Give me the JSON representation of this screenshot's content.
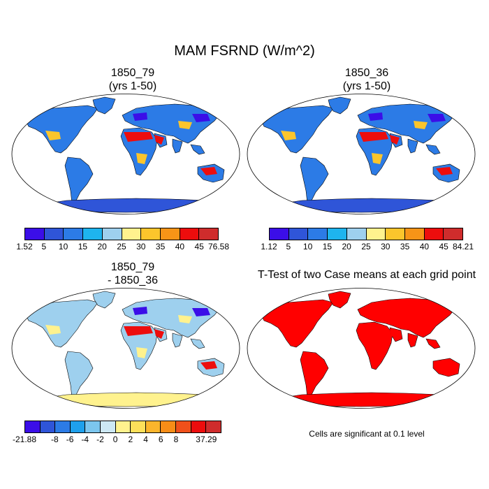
{
  "title": "MAM FSRND (W/m^2)",
  "panels": [
    {
      "line1": "1850_79",
      "line2": "(yrs 1-50)"
    },
    {
      "line1": "1850_36",
      "line2": "(yrs 1-50)"
    },
    {
      "line1": "1850_79",
      "line2": "- 1850_36"
    },
    {
      "line1": "T-Test of two Case means at each grid point",
      "line2": ""
    }
  ],
  "colorbars": [
    {
      "colors": [
        "#3b0ee8",
        "#2f55d8",
        "#2c7be6",
        "#1eb4ee",
        "#9ed0ee",
        "#fff28e",
        "#fbc52c",
        "#f79417",
        "#ed0d0d",
        "#cf2c2c"
      ],
      "labels": [
        "1.52",
        "5",
        "10",
        "15",
        "20",
        "25",
        "30",
        "35",
        "40",
        "45",
        "76.58"
      ]
    },
    {
      "colors": [
        "#3b0ee8",
        "#2f55d8",
        "#2c7be6",
        "#1eb4ee",
        "#9ed0ee",
        "#fff28e",
        "#fbc52c",
        "#f79417",
        "#ed0d0d",
        "#cf2c2c"
      ],
      "labels": [
        "1.12",
        "5",
        "10",
        "15",
        "20",
        "25",
        "30",
        "35",
        "40",
        "45",
        "84.21"
      ]
    },
    {
      "colors": [
        "#3b0ee8",
        "#2f55d8",
        "#2c7be6",
        "#1ea0ec",
        "#7cc6ee",
        "#cde8f4",
        "#fff28e",
        "#fde05a",
        "#fbb52c",
        "#f78d17",
        "#f0501a",
        "#ed0d0d",
        "#cf2c2c"
      ],
      "labels": [
        "-21.88",
        "",
        "-8",
        "-6",
        "-4",
        "-2",
        "0",
        "2",
        "4",
        "6",
        "8",
        "",
        "37.29"
      ]
    }
  ],
  "note": "Cells are significant at 0.1 level",
  "map_colors": {
    "ocean": "#ffffff",
    "outline": "#000000",
    "p1": {
      "base": "#2c7be6",
      "hot": "#ed0d0d",
      "warm": "#fbc52c",
      "cold": "#3b0ee8",
      "ice": "#2f55d8"
    },
    "p2": {
      "base": "#2c7be6",
      "hot": "#ed0d0d",
      "warm": "#fbc52c",
      "cold": "#3b0ee8",
      "ice": "#2f55d8"
    },
    "p3": {
      "base": "#9ed0ee",
      "hot": "#ed0d0d",
      "warm": "#fff28e",
      "cold": "#3b0ee8",
      "ice": "#fff28e"
    },
    "p4": {
      "base": "#ff0000",
      "hot": "#ff0000",
      "warm": "#ff0000",
      "cold": "#ff0000",
      "ice": "#ff0000"
    }
  }
}
